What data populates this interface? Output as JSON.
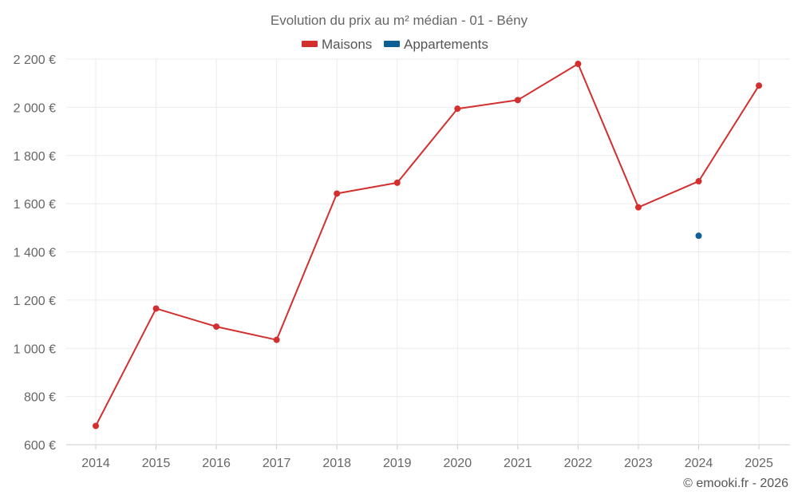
{
  "chart_data": {
    "type": "line",
    "title": "Evolution du prix au m² médian - 01 - Bény",
    "categories": [
      "2014",
      "2015",
      "2016",
      "2017",
      "2018",
      "2019",
      "2020",
      "2021",
      "2022",
      "2023",
      "2024",
      "2025"
    ],
    "series": [
      {
        "name": "Maisons",
        "color": "#d32f2f",
        "values": [
          678,
          1165,
          1090,
          1035,
          1642,
          1687,
          1994,
          2030,
          2180,
          1585,
          1693,
          2090
        ]
      },
      {
        "name": "Appartements",
        "color": "#0d5f96",
        "values": [
          null,
          null,
          null,
          null,
          null,
          null,
          null,
          null,
          null,
          null,
          1467,
          null
        ]
      }
    ],
    "yticks": [
      600,
      800,
      1000,
      1200,
      1400,
      1600,
      1800,
      2000,
      2200
    ],
    "ytick_labels": [
      "600 €",
      "800 €",
      "1 000 €",
      "1 200 €",
      "1 400 €",
      "1 600 €",
      "1 800 €",
      "2 000 €",
      "2 200 €"
    ],
    "ylim": [
      600,
      2200
    ],
    "xlabel": "",
    "ylabel": "",
    "grid": true,
    "legend_position": "top-center"
  },
  "credit": "© emooki.fr - 2026"
}
